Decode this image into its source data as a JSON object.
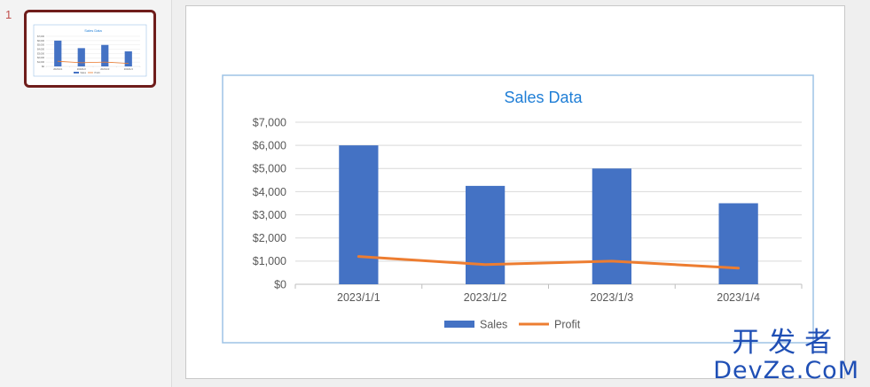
{
  "slide_panel": {
    "slide_number": "1"
  },
  "chart_data": {
    "type": "bar+line",
    "title": "Sales Data",
    "categories": [
      "2023/1/1",
      "2023/1/2",
      "2023/1/3",
      "2023/1/4"
    ],
    "series": [
      {
        "name": "Sales",
        "type": "bar",
        "color": "#4472c4",
        "values": [
          6000,
          4250,
          5000,
          3500
        ]
      },
      {
        "name": "Profit",
        "type": "line",
        "color": "#ed7d31",
        "values": [
          1200,
          850,
          1000,
          700
        ]
      }
    ],
    "yticks": [
      "$0",
      "$1,000",
      "$2,000",
      "$3,000",
      "$4,000",
      "$5,000",
      "$6,000",
      "$7,000"
    ],
    "ylim": [
      0,
      7000
    ],
    "grid": true,
    "legend_position": "bottom",
    "xlabel": "",
    "ylabel": ""
  },
  "colors": {
    "title": "#1f7ed6",
    "border": "#9dc3e6",
    "grid": "#d9d9d9",
    "thumb_border": "#6f1d1b"
  },
  "watermark": {
    "cn": "开发者",
    "en": "DevZe.CoM"
  }
}
